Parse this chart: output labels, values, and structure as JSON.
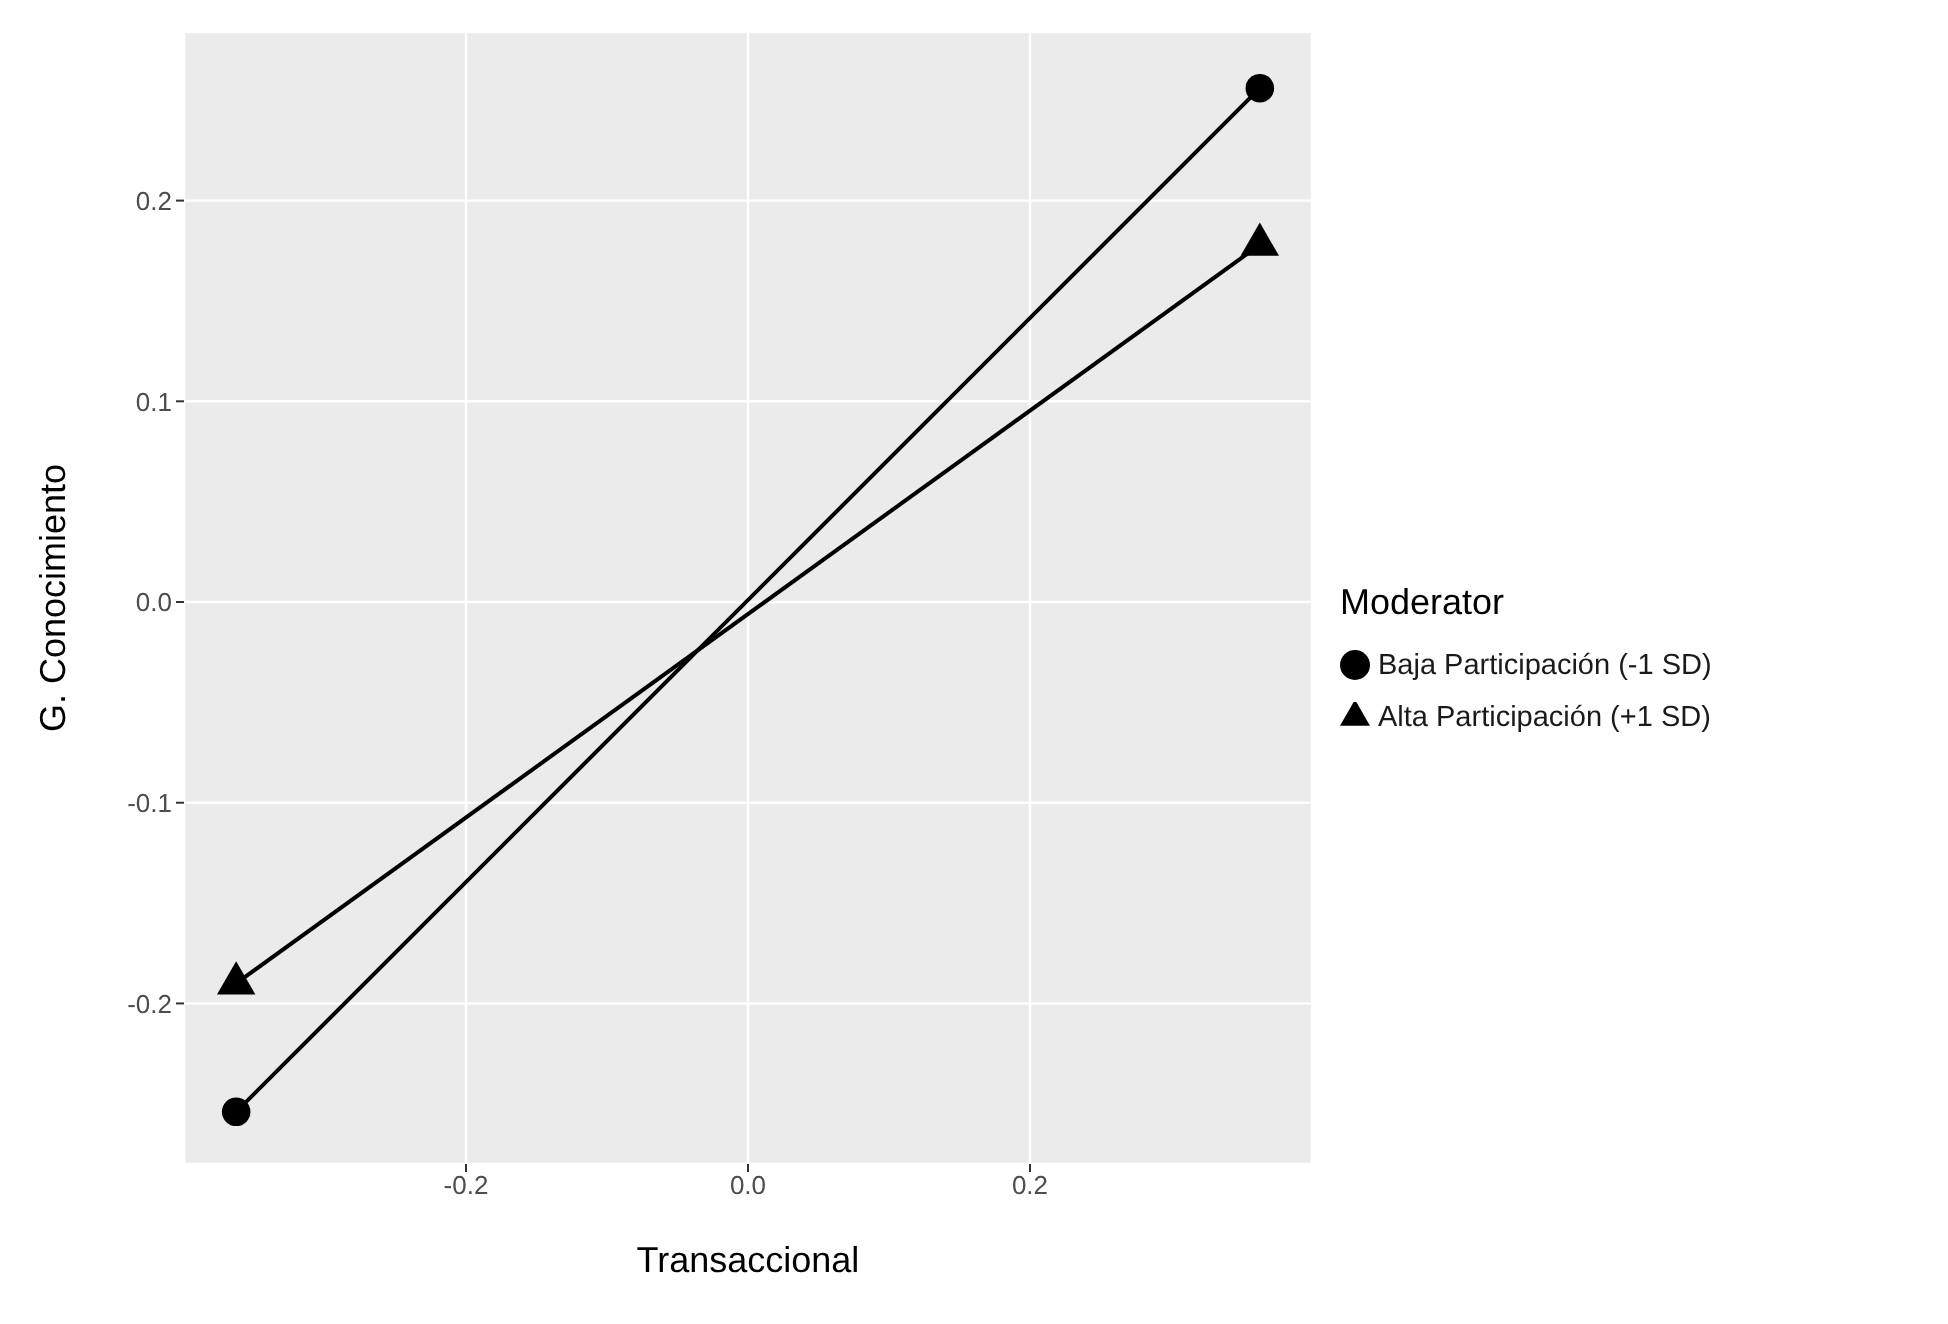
{
  "chart_data": {
    "type": "line",
    "xlabel": "Transaccional",
    "ylabel": "G. Conocimiento",
    "legend_title": "Moderator",
    "x": [
      -0.363,
      0.363
    ],
    "series": [
      {
        "name": "Baja Participación (-1 SD)",
        "color": "#000000",
        "marker": "circle",
        "values": [
          -0.254,
          0.256
        ]
      },
      {
        "name": "Alta Participación (+1 SD)",
        "color": "#000000",
        "marker": "triangle",
        "values": [
          -0.19,
          0.178
        ]
      }
    ],
    "xlim": [
      -0.4,
      0.4
    ],
    "ylim": [
      -0.28,
      0.284
    ],
    "xticks": [
      {
        "value": -0.2,
        "label": "-0.2"
      },
      {
        "value": 0,
        "label": "0.0"
      },
      {
        "value": 0.2,
        "label": "0.2"
      }
    ],
    "yticks": [
      {
        "value": -0.2,
        "label": "-0.2"
      },
      {
        "value": -0.1,
        "label": "-0.1"
      },
      {
        "value": 0,
        "label": "0.0"
      },
      {
        "value": 0.1,
        "label": "0.1"
      },
      {
        "value": 0.2,
        "label": "0.2"
      }
    ],
    "grid": true,
    "legend": "right",
    "line_style": "solid"
  }
}
